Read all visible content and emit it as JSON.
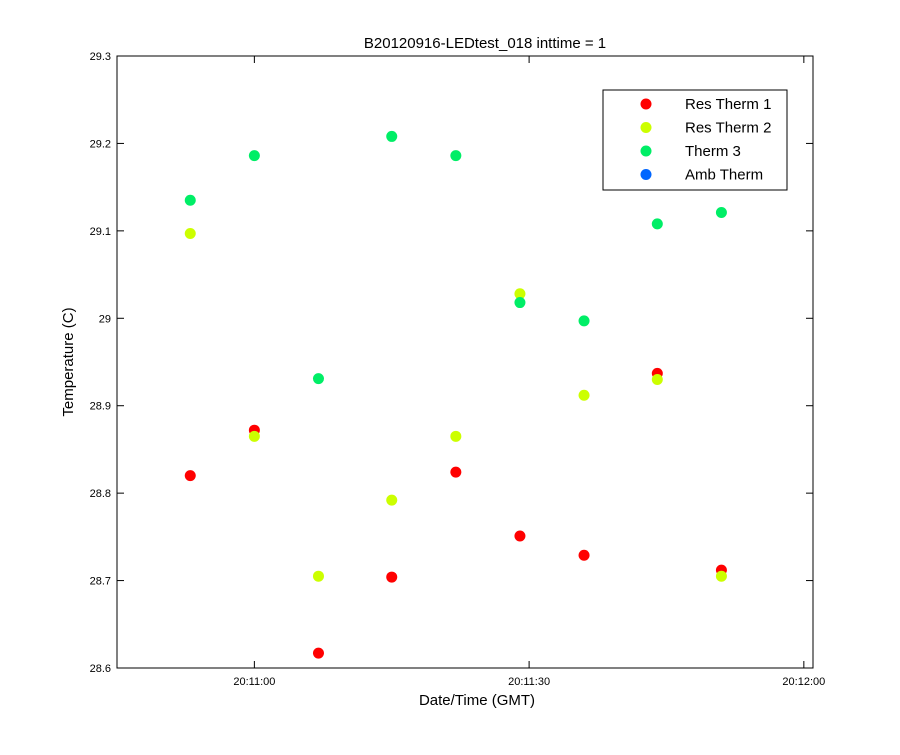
{
  "chart_data": {
    "type": "scatter",
    "title": "B20120916-LEDtest_018 inttime = 1",
    "xlabel": "Date/Time (GMT)",
    "ylabel": "Temperature (C)",
    "x_axis": {
      "type": "time",
      "range": [
        "20:10:45",
        "20:12:01"
      ],
      "ticks": [
        "20:11:00",
        "20:11:30",
        "20:12:00"
      ]
    },
    "y_axis": {
      "range": [
        28.6,
        29.3
      ],
      "ticks": [
        "28.6",
        "28.7",
        "28.8",
        "28.9",
        "29",
        "29.1",
        "29.2",
        "29.3"
      ]
    },
    "grid": false,
    "legend": {
      "placement": "top-right"
    },
    "x": [
      "20:10:53",
      "20:11:00",
      "20:11:07",
      "20:11:15",
      "20:11:22",
      "20:11:29",
      "20:11:36",
      "20:11:44",
      "20:11:51"
    ],
    "series": [
      {
        "name": "Res Therm 1",
        "color": "#ff0000",
        "values": [
          28.82,
          28.872,
          28.617,
          28.704,
          28.824,
          28.751,
          28.729,
          28.937,
          28.712
        ]
      },
      {
        "name": "Res Therm 2",
        "color": "#ccff00",
        "values": [
          29.097,
          28.865,
          28.705,
          28.792,
          28.865,
          29.028,
          28.912,
          28.93,
          28.705
        ]
      },
      {
        "name": "Therm 3",
        "color": "#00ee66",
        "values": [
          29.135,
          29.186,
          28.931,
          29.208,
          29.186,
          29.018,
          28.997,
          29.108,
          29.121
        ]
      },
      {
        "name": "Amb Therm",
        "color": "#0066ff",
        "values": []
      }
    ]
  }
}
